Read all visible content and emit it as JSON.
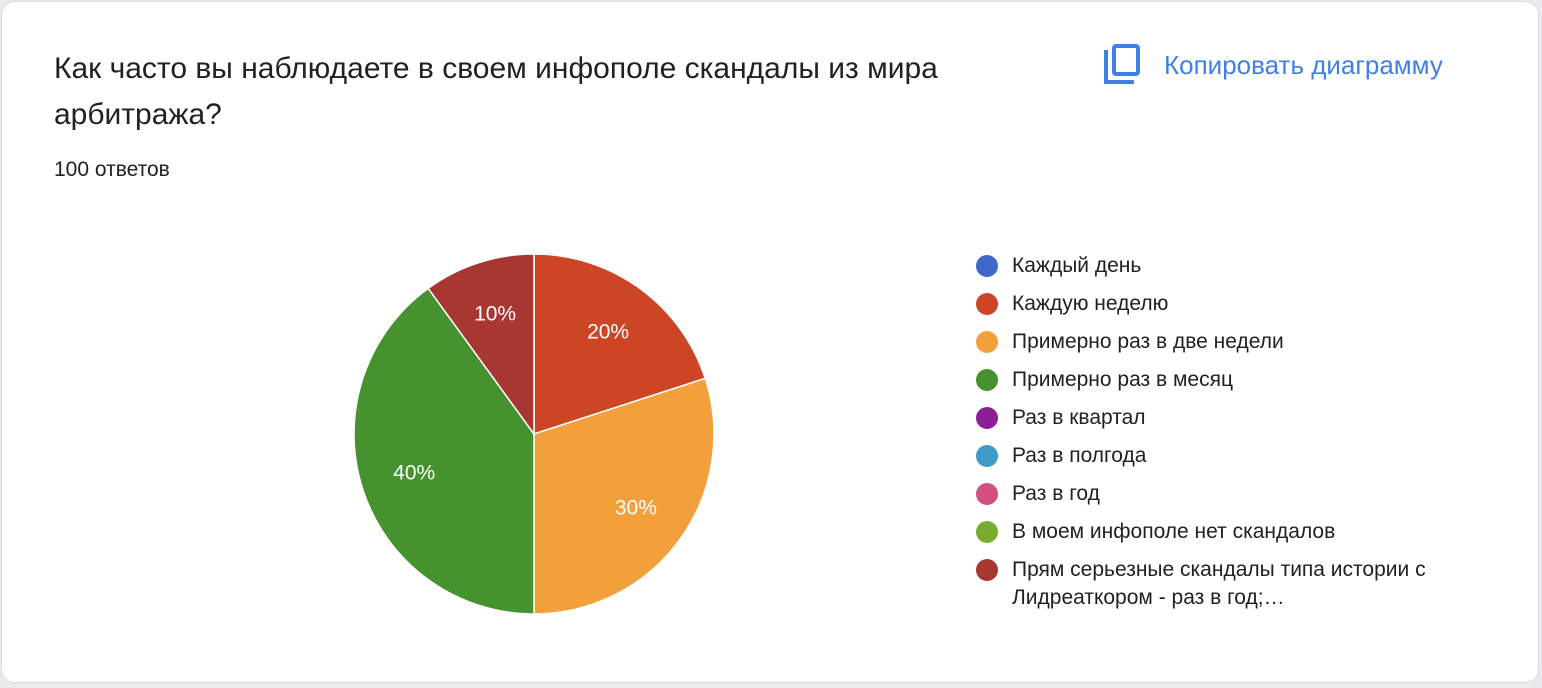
{
  "header": {
    "title": "Как часто вы наблюдаете в своем инфополе скандалы из мира арбитража?",
    "responses": "100 ответов",
    "copy_label": "Копировать диаграмму",
    "copy_icon": "copy-icon"
  },
  "colors": {
    "accent": "#3f7fe6"
  },
  "chart_data": {
    "type": "pie",
    "total_responses": 100,
    "legend_position": "right",
    "start_angle_deg": 90,
    "direction": "clockwise",
    "categories": [
      "Каждый день",
      "Каждую неделю",
      "Примерно раз в две недели",
      "Примерно раз в месяц",
      "Раз в квартал",
      "Раз в полгода",
      "Раз в год",
      "В моем инфополе нет скандалов",
      "Прям серьезные скандалы типа истории с Лидреаткором - раз в год;…"
    ],
    "values": [
      0,
      20,
      30,
      40,
      0,
      0,
      0,
      0,
      10
    ],
    "value_labels": [
      "0%",
      "20%",
      "30%",
      "40%",
      "0%",
      "0%",
      "0%",
      "0%",
      "10%"
    ],
    "colors": [
      "#3f68c9",
      "#cc4626",
      "#f2a03b",
      "#45922f",
      "#8d1f96",
      "#3e9bc8",
      "#d34f7f",
      "#7bab2d",
      "#a83732"
    ]
  }
}
